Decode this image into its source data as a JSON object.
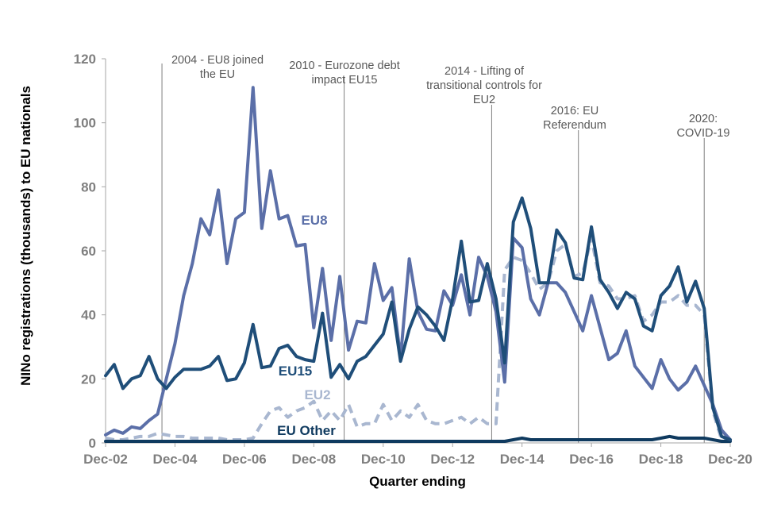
{
  "chart_data": {
    "type": "line",
    "title": "",
    "xlabel": "Quarter ending",
    "ylabel": "NINo registrations (thousands) to EU nationals",
    "ylim": [
      0,
      120
    ],
    "yticks": [
      0,
      20,
      40,
      60,
      80,
      100,
      120
    ],
    "grid": false,
    "x_start": "Dec-02",
    "x_end": "Dec-20",
    "xticks": [
      {
        "label": "Dec-02",
        "index": 0
      },
      {
        "label": "Dec-04",
        "index": 8
      },
      {
        "label": "Dec-06",
        "index": 16
      },
      {
        "label": "Dec-08",
        "index": 24
      },
      {
        "label": "Dec-10",
        "index": 32
      },
      {
        "label": "Dec-12",
        "index": 40
      },
      {
        "label": "Dec-14",
        "index": 48
      },
      {
        "label": "Dec-16",
        "index": 56
      },
      {
        "label": "Dec-18",
        "index": 64
      },
      {
        "label": "Dec-20",
        "index": 72
      }
    ],
    "series": [
      {
        "name": "EU8",
        "label": "EU8",
        "color": "#5b6fa8",
        "dash": false,
        "values": [
          2.5,
          4,
          3,
          5,
          4.5,
          7,
          9,
          20,
          31,
          46,
          56,
          70,
          65,
          79,
          56,
          70,
          72,
          111,
          67,
          85,
          70,
          71,
          61.5,
          62,
          36,
          54.5,
          32,
          52,
          29,
          38,
          37.5,
          56,
          44.5,
          48.5,
          26.5,
          57.5,
          41,
          35.5,
          35,
          47.5,
          43,
          52.5,
          40,
          58,
          52,
          41,
          19,
          64,
          61,
          45,
          40,
          50,
          50,
          47,
          41,
          35,
          46,
          36,
          26,
          28,
          35,
          24,
          20.5,
          17,
          26,
          20,
          16.5,
          19,
          24,
          18,
          12,
          4,
          1
        ]
      },
      {
        "name": "EU15",
        "label": "EU15",
        "color": "#1f4e79",
        "dash": false,
        "values": [
          21,
          24.5,
          17,
          20,
          21,
          27,
          20,
          17,
          20.5,
          23,
          23,
          23,
          24,
          27,
          19.5,
          20,
          25,
          37,
          23.5,
          24,
          29.5,
          30.5,
          27,
          26,
          25.5,
          40.5,
          20.5,
          24.5,
          20,
          25.5,
          27,
          30.5,
          34,
          44,
          25.5,
          35.5,
          42.5,
          40,
          36.5,
          32,
          45,
          63,
          44,
          44.5,
          56,
          45,
          25,
          69,
          76.5,
          67,
          50,
          50,
          66.5,
          62.5,
          51.5,
          51,
          67.5,
          51,
          47,
          42,
          47,
          45,
          36.5,
          35,
          46,
          49,
          55,
          44,
          50.5,
          42,
          11,
          2,
          1
        ]
      },
      {
        "name": "EU2",
        "label": "EU2",
        "color": "#a9b7d0",
        "dash": true,
        "values": [
          1.5,
          1,
          1,
          1.5,
          2,
          2,
          3,
          2.5,
          2,
          2,
          1.5,
          1.5,
          1.5,
          1.5,
          1,
          1,
          1,
          1.5,
          6,
          10,
          11,
          8,
          10,
          11,
          13,
          7,
          10,
          7,
          12,
          5,
          6,
          6,
          12,
          7,
          10,
          8,
          12,
          7,
          6,
          6,
          7,
          8,
          6,
          8,
          6,
          6,
          54,
          58,
          57,
          53,
          48,
          50,
          60,
          62,
          52,
          53,
          64,
          50,
          49,
          45,
          45,
          46,
          38,
          40,
          44,
          44,
          46,
          43,
          43,
          40,
          10,
          1,
          1.5
        ]
      },
      {
        "name": "EU Other",
        "label": "EU Other",
        "color": "#0f3a5f",
        "dash": false,
        "values": [
          0.5,
          0.5,
          0.5,
          0.5,
          0.5,
          0.5,
          0.5,
          0.5,
          0.5,
          0.5,
          0.5,
          0.5,
          0.5,
          0.5,
          0.5,
          0.5,
          0.5,
          0.5,
          0.5,
          0.5,
          0.5,
          0.5,
          0.5,
          0.5,
          0.5,
          0.5,
          0.5,
          0.5,
          0.5,
          0.5,
          0.5,
          0.5,
          0.5,
          0.5,
          0.5,
          0.5,
          0.5,
          0.5,
          0.5,
          0.5,
          0.5,
          0.5,
          0.5,
          0.5,
          0.5,
          0.5,
          0.5,
          1,
          1.5,
          1,
          1,
          1,
          1,
          1,
          1,
          1,
          1,
          1,
          1,
          1,
          1,
          1,
          1,
          1,
          1.5,
          2,
          1.5,
          1.5,
          1.5,
          1.5,
          1,
          0.5,
          0.5
        ]
      }
    ],
    "annotations": [
      {
        "id": "2004",
        "lines": [
          "2004 - EU8 joined",
          "the EU"
        ],
        "index": 6.5
      },
      {
        "id": "2010",
        "lines": [
          "2010 - Eurozone debt",
          "impact EU15"
        ],
        "index": 27.5
      },
      {
        "id": "2014",
        "lines": [
          "2014 - Lifting of",
          "transitional controls for",
          "EU2"
        ],
        "index": 44.5
      },
      {
        "id": "2016",
        "lines": [
          "2016: EU",
          "Referendum"
        ],
        "index": 54.5
      },
      {
        "id": "2020",
        "lines": [
          "2020:",
          "COVID-19"
        ],
        "index": 69
      }
    ]
  }
}
